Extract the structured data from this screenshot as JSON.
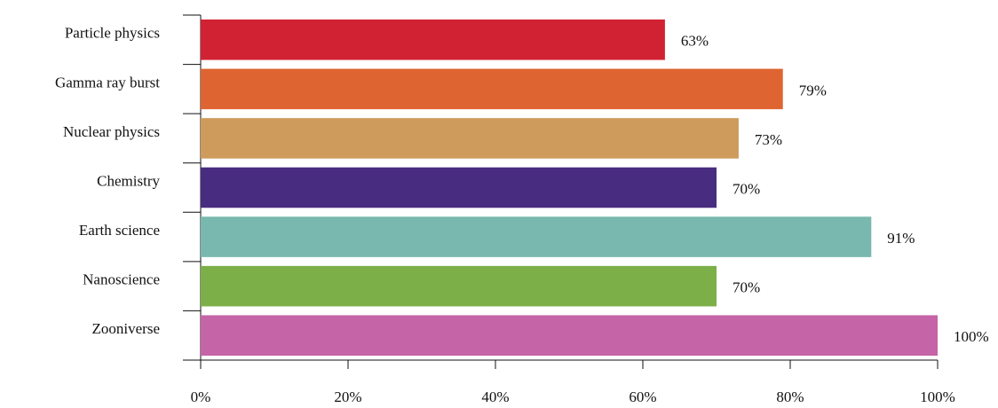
{
  "chart_data": {
    "type": "hbar",
    "categories": [
      "Particle physics",
      "Gamma ray burst",
      "Nuclear physics",
      "Chemistry",
      "Earth science",
      "Nanoscience",
      "Zooniverse"
    ],
    "values": [
      63,
      79,
      73,
      70,
      91,
      70,
      100
    ],
    "value_labels": [
      "63%",
      "79%",
      "73%",
      "70%",
      "91%",
      "70%",
      "100%"
    ],
    "colors": [
      "#d12233",
      "#de6431",
      "#ce9b5c",
      "#482c7f",
      "#79b8ae",
      "#7caf47",
      "#c564a6"
    ],
    "xlim": [
      0,
      100
    ],
    "xticks": [
      {
        "value": 0,
        "label": "0%"
      },
      {
        "value": 20,
        "label": "20%"
      },
      {
        "value": 40,
        "label": "40%"
      },
      {
        "value": 60,
        "label": "60%"
      },
      {
        "value": 80,
        "label": "80%"
      },
      {
        "value": 100,
        "label": "100%"
      }
    ]
  }
}
